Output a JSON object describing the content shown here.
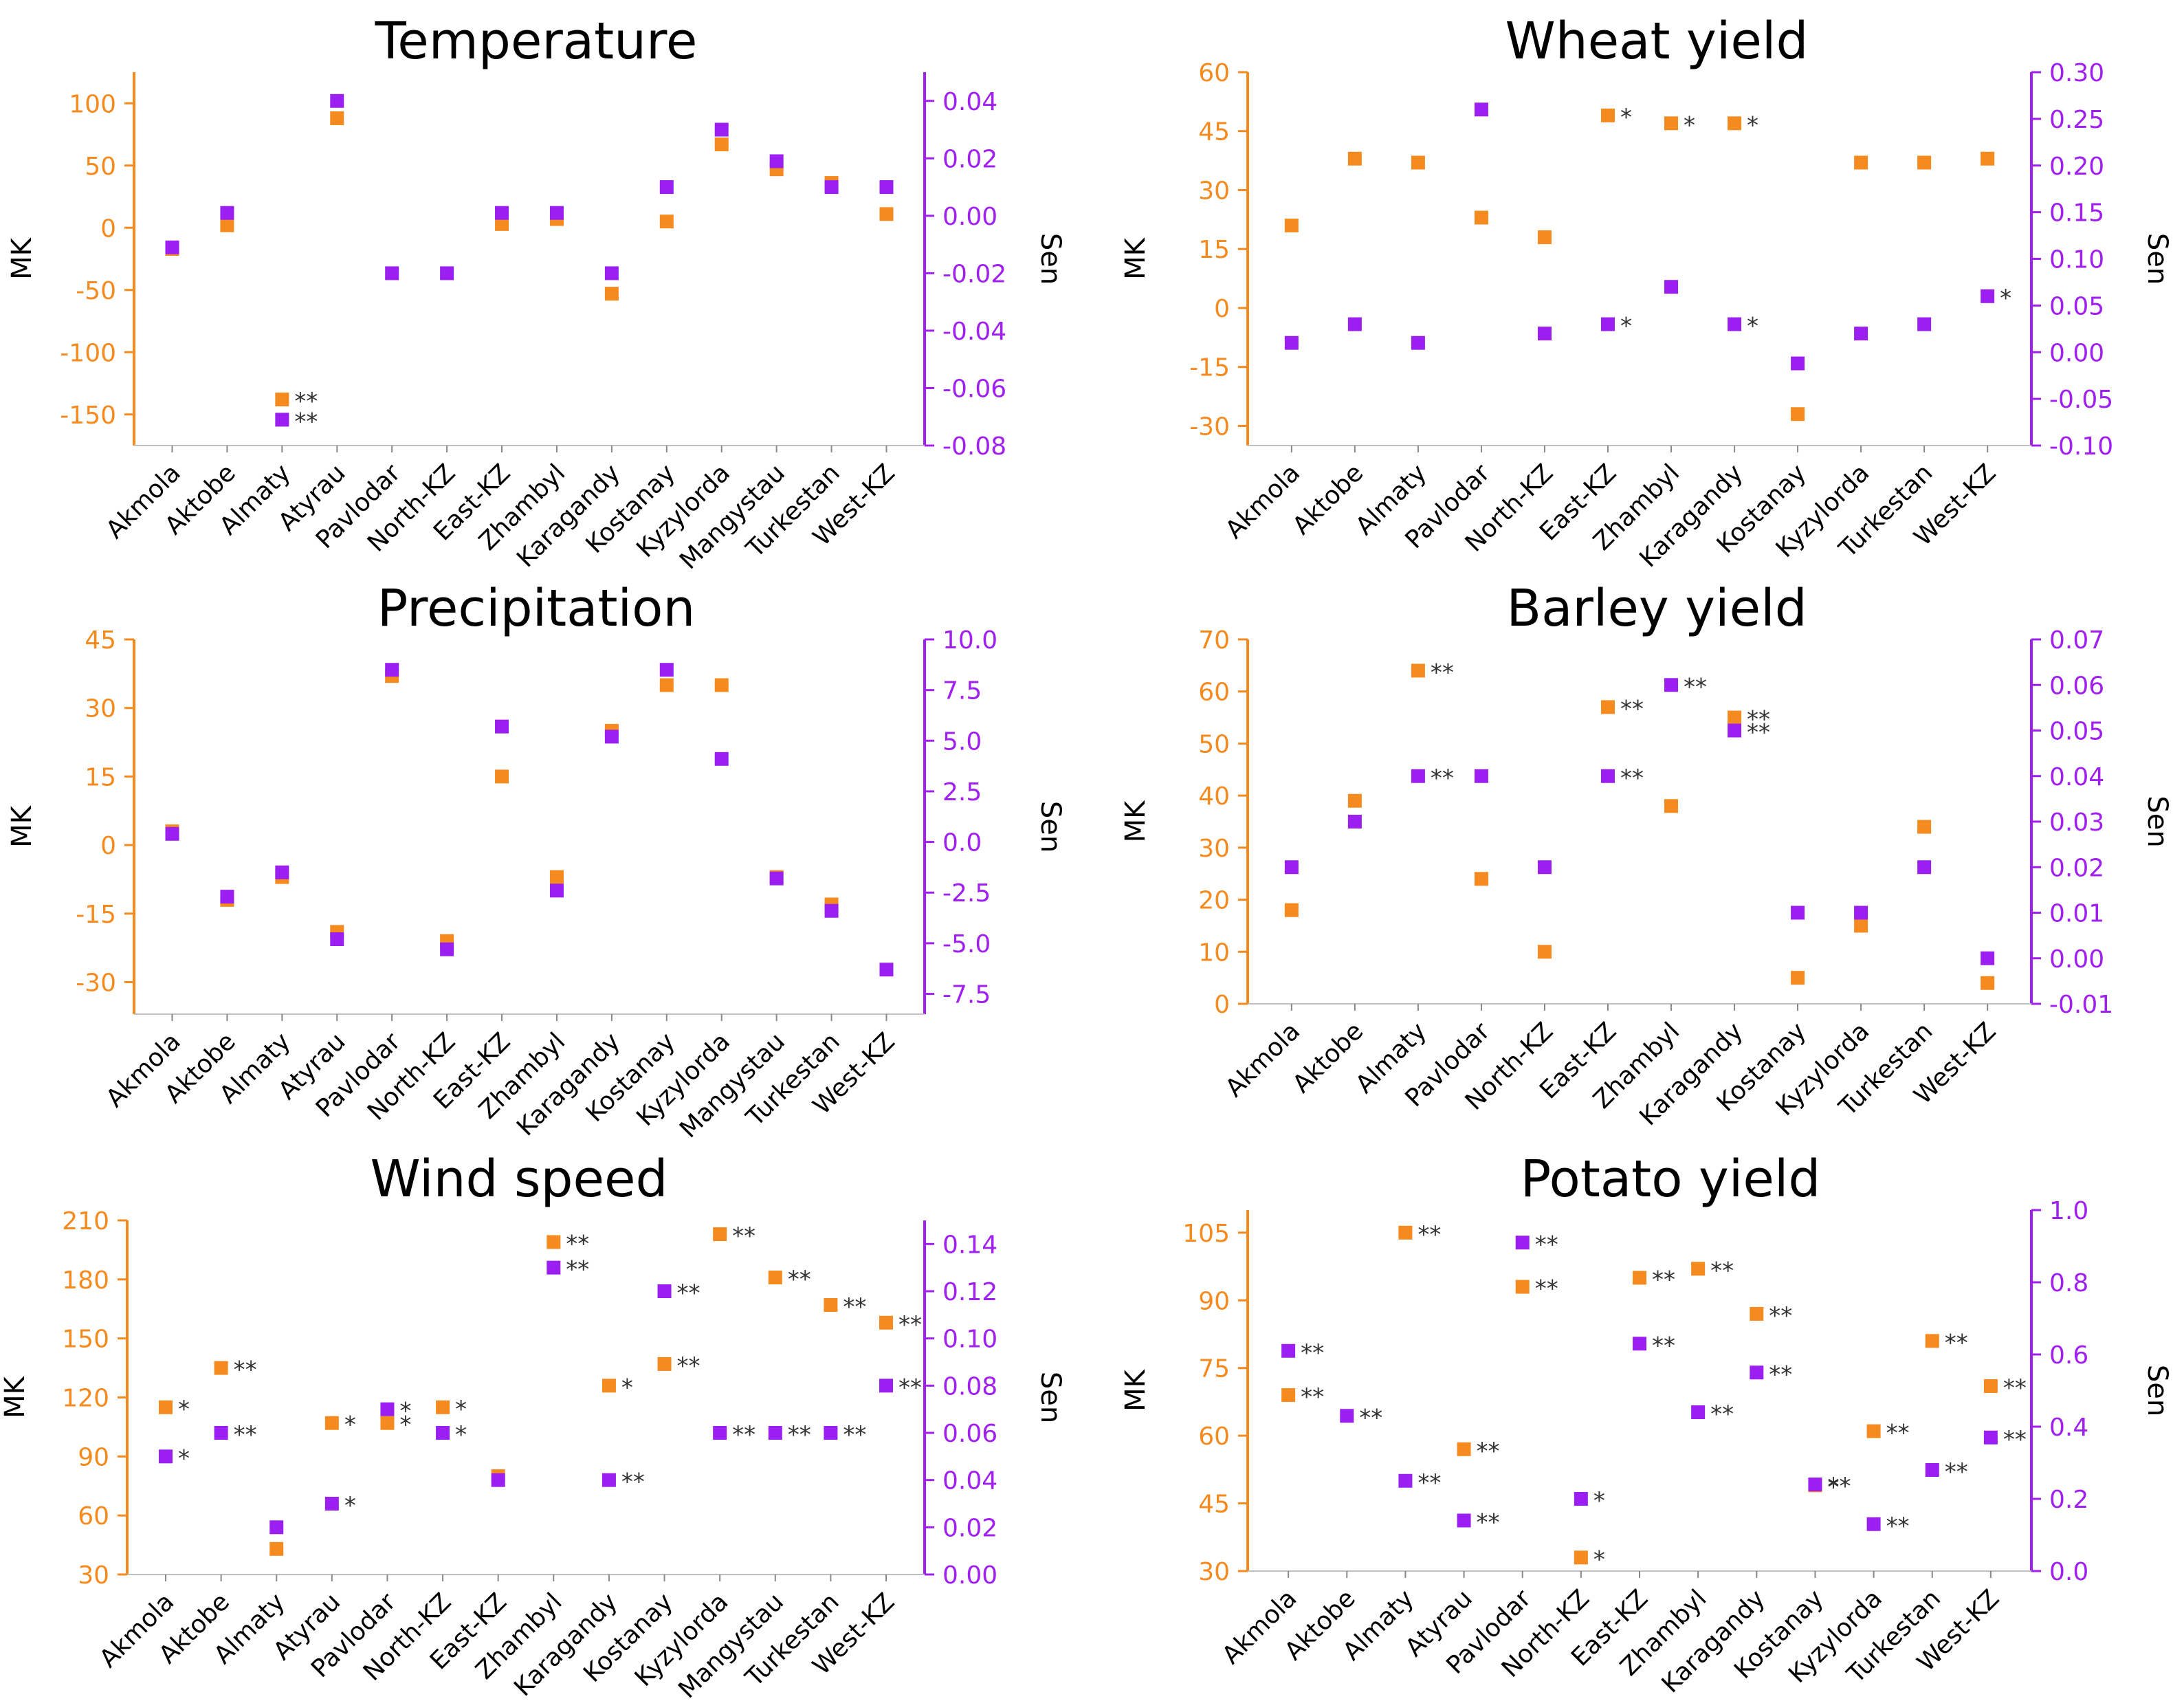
{
  "colors": {
    "mk": "#f58a1f",
    "sen": "#9b1ff0",
    "axis_left": "#f58a1f",
    "axis_right": "#a020f0",
    "text": "#000000",
    "star": "#333333"
  },
  "chart_data": [
    {
      "id": "temperature",
      "type": "scatter",
      "title": "Temperature",
      "ylabel": "MK",
      "y2label": "Sen",
      "ylim": [
        -175,
        125
      ],
      "y2lim": [
        -0.08,
        0.05
      ],
      "yticks": [
        100,
        50,
        0,
        -50,
        -100,
        -150
      ],
      "y2ticks": [
        0.04,
        0.02,
        0.0,
        -0.02,
        -0.04,
        -0.06,
        -0.08
      ],
      "ytick_labels": [
        "100",
        "50",
        "0",
        "-50",
        "-100",
        "-150"
      ],
      "y2tick_labels": [
        "0.04",
        "0.02",
        "0.00",
        "-0.02",
        "-0.04",
        "-0.06",
        "-0.08"
      ],
      "categories": [
        "Akmola",
        "Aktobe",
        "Almaty",
        "Atyrau",
        "Pavlodar",
        "North-KZ",
        "East-KZ",
        "Zhambyl",
        "Karagandy",
        "Kostanay",
        "Kyzylorda",
        "Mangystau",
        "Turkestan",
        "West-KZ"
      ],
      "series": [
        {
          "name": "MK",
          "axis": "left",
          "values": [
            -17,
            2,
            -138,
            88,
            null,
            null,
            3,
            7,
            -53,
            5,
            67,
            47,
            36,
            11
          ],
          "stars": [
            "",
            "",
            "**",
            "",
            "",
            "",
            "",
            "",
            "",
            "",
            "",
            "",
            "",
            ""
          ]
        },
        {
          "name": "Sen",
          "axis": "right",
          "values": [
            -0.011,
            0.001,
            -0.071,
            0.04,
            -0.02,
            -0.02,
            0.001,
            0.001,
            -0.02,
            0.01,
            0.03,
            0.019,
            0.01,
            0.01
          ],
          "stars": [
            "",
            "",
            "**",
            "",
            "",
            "",
            "",
            "",
            "",
            "",
            "",
            "",
            "",
            ""
          ]
        }
      ]
    },
    {
      "id": "wheat",
      "type": "scatter",
      "title": "Wheat yield",
      "ylabel": "MK",
      "y2label": "Sen",
      "ylim": [
        -35,
        60
      ],
      "y2lim": [
        -0.1,
        0.3
      ],
      "yticks": [
        60,
        45,
        30,
        15,
        0,
        -15,
        -30
      ],
      "y2ticks": [
        0.3,
        0.25,
        0.2,
        0.15,
        0.1,
        0.05,
        0.0,
        -0.05,
        -0.1
      ],
      "ytick_labels": [
        "60",
        "45",
        "30",
        "15",
        "0",
        "-15",
        "-30"
      ],
      "y2tick_labels": [
        "0.30",
        "0.25",
        "0.20",
        "0.15",
        "0.10",
        "0.05",
        "0.00",
        "-0.05",
        "-0.10"
      ],
      "categories": [
        "Akmola",
        "Aktobe",
        "Almaty",
        "Pavlodar",
        "North-KZ",
        "East-KZ",
        "Zhambyl",
        "Karagandy",
        "Kostanay",
        "Kyzylorda",
        "Turkestan",
        "West-KZ"
      ],
      "series": [
        {
          "name": "MK",
          "axis": "left",
          "values": [
            21,
            38,
            37,
            23,
            18,
            49,
            47,
            47,
            -27,
            37,
            37,
            38
          ],
          "stars": [
            "",
            "",
            "",
            "",
            "",
            "*",
            "*",
            "*",
            "",
            "",
            "",
            ""
          ]
        },
        {
          "name": "Sen",
          "axis": "right",
          "values": [
            0.01,
            0.03,
            0.01,
            0.26,
            0.02,
            0.03,
            0.07,
            0.03,
            -0.012,
            0.02,
            0.03,
            0.06
          ],
          "stars": [
            "",
            "",
            "",
            "",
            "",
            "*",
            "",
            "*",
            "",
            "",
            "",
            "*"
          ]
        }
      ]
    },
    {
      "id": "precipitation",
      "type": "scatter",
      "title": "Precipitation",
      "ylabel": "MK",
      "y2label": "Sen",
      "ylim": [
        -37,
        45
      ],
      "y2lim": [
        -8.5,
        10
      ],
      "yticks": [
        45,
        30,
        15,
        0,
        -15,
        -30
      ],
      "y2ticks": [
        10.0,
        7.5,
        5.0,
        2.5,
        0.0,
        -2.5,
        -5.0,
        -7.5
      ],
      "ytick_labels": [
        "45",
        "30",
        "15",
        "0",
        "-15",
        "-30"
      ],
      "y2tick_labels": [
        "10.0",
        "7.5",
        "5.0",
        "2.5",
        "0.0",
        "-2.5",
        "-5.0",
        "-7.5"
      ],
      "categories": [
        "Akmola",
        "Aktobe",
        "Almaty",
        "Atyrau",
        "Pavlodar",
        "North-KZ",
        "East-KZ",
        "Zhambyl",
        "Karagandy",
        "Kostanay",
        "Kyzylorda",
        "Mangystau",
        "Turkestan",
        "West-KZ"
      ],
      "series": [
        {
          "name": "MK",
          "axis": "left",
          "values": [
            3,
            -12,
            -7,
            -19,
            37,
            -21,
            15,
            -7,
            25,
            35,
            35,
            -7,
            -13,
            null
          ],
          "stars": [
            "",
            "",
            "",
            "",
            "",
            "",
            "",
            "",
            "",
            "",
            "",
            "",
            "",
            ""
          ]
        },
        {
          "name": "Sen",
          "axis": "right",
          "values": [
            0.4,
            -2.7,
            -1.5,
            -4.8,
            8.5,
            -5.3,
            5.7,
            -2.4,
            5.2,
            8.5,
            4.1,
            -1.8,
            -3.4,
            -6.3
          ],
          "stars": [
            "",
            "",
            "",
            "",
            "",
            "",
            "",
            "",
            "",
            "",
            "",
            "",
            "",
            ""
          ]
        }
      ]
    },
    {
      "id": "barley",
      "type": "scatter",
      "title": "Barley yield",
      "ylabel": "MK",
      "y2label": "Sen",
      "ylim": [
        0,
        70
      ],
      "y2lim": [
        -0.01,
        0.07
      ],
      "yticks": [
        70,
        60,
        50,
        40,
        30,
        20,
        10,
        0
      ],
      "y2ticks": [
        0.07,
        0.06,
        0.05,
        0.04,
        0.03,
        0.02,
        0.01,
        0.0,
        -0.01
      ],
      "ytick_labels": [
        "70",
        "60",
        "50",
        "40",
        "30",
        "20",
        "10",
        "0"
      ],
      "y2tick_labels": [
        "0.07",
        "0.06",
        "0.05",
        "0.04",
        "0.03",
        "0.02",
        "0.01",
        "0.00",
        "-0.01"
      ],
      "categories": [
        "Akmola",
        "Aktobe",
        "Almaty",
        "Pavlodar",
        "North-KZ",
        "East-KZ",
        "Zhambyl",
        "Karagandy",
        "Kostanay",
        "Kyzylorda",
        "Turkestan",
        "West-KZ"
      ],
      "series": [
        {
          "name": "MK",
          "axis": "left",
          "values": [
            18,
            39,
            64,
            24,
            10,
            57,
            38,
            55,
            5,
            15,
            34,
            4
          ],
          "stars": [
            "",
            "",
            "**",
            "",
            "",
            "**",
            "",
            "**",
            "",
            "",
            "",
            ""
          ]
        },
        {
          "name": "Sen",
          "axis": "right",
          "values": [
            0.02,
            0.03,
            0.04,
            0.04,
            0.02,
            0.04,
            0.06,
            0.05,
            0.01,
            0.01,
            0.02,
            0.0
          ],
          "stars": [
            "",
            "",
            "**",
            "",
            "",
            "**",
            "**",
            "**",
            "",
            "",
            "",
            ""
          ]
        }
      ]
    },
    {
      "id": "wind",
      "type": "scatter",
      "title": "Wind speed",
      "ylabel": "MK",
      "y2label": "Sen",
      "ylim": [
        30,
        210
      ],
      "y2lim": [
        0,
        0.15
      ],
      "yticks": [
        210,
        180,
        150,
        120,
        90,
        60,
        30
      ],
      "y2ticks": [
        0.14,
        0.12,
        0.1,
        0.08,
        0.06,
        0.04,
        0.02,
        0.0
      ],
      "ytick_labels": [
        "210",
        "180",
        "150",
        "120",
        "90",
        "60",
        "30"
      ],
      "y2tick_labels": [
        "0.14",
        "0.12",
        "0.10",
        "0.08",
        "0.06",
        "0.04",
        "0.02",
        "0.00"
      ],
      "categories": [
        "Akmola",
        "Aktobe",
        "Almaty",
        "Atyrau",
        "Pavlodar",
        "North-KZ",
        "East-KZ",
        "Zhambyl",
        "Karagandy",
        "Kostanay",
        "Kyzylorda",
        "Mangystau",
        "Turkestan",
        "West-KZ"
      ],
      "series": [
        {
          "name": "MK",
          "axis": "left",
          "values": [
            115,
            135,
            43,
            107,
            107,
            115,
            80,
            199,
            126,
            137,
            203,
            181,
            167,
            158
          ],
          "stars": [
            "*",
            "**",
            "",
            "*",
            "*",
            "*",
            "",
            "**",
            "*",
            "**",
            "**",
            "**",
            "**",
            "**"
          ]
        },
        {
          "name": "Sen",
          "axis": "right",
          "values": [
            0.05,
            0.06,
            0.02,
            0.03,
            0.07,
            0.06,
            0.04,
            0.13,
            0.04,
            0.12,
            0.06,
            0.06,
            0.06,
            0.08
          ],
          "stars": [
            "*",
            "**",
            "",
            "*",
            "*",
            "*",
            "",
            "**",
            "**",
            "**",
            "**",
            "**",
            "**",
            "**"
          ]
        }
      ]
    },
    {
      "id": "potato",
      "type": "scatter",
      "title": "Potato yield",
      "ylabel": "MK",
      "y2label": "Sen",
      "ylim": [
        30,
        110
      ],
      "y2lim": [
        0,
        1.0
      ],
      "yticks": [
        105,
        90,
        75,
        60,
        45,
        30
      ],
      "y2ticks": [
        1.0,
        0.8,
        0.6,
        0.4,
        0.2,
        0.0
      ],
      "ytick_labels": [
        "105",
        "90",
        "75",
        "60",
        "45",
        "30"
      ],
      "y2tick_labels": [
        "1.0",
        "0.8",
        "0.6",
        "0.4",
        "0.2",
        "0.0"
      ],
      "categories": [
        "Akmola",
        "Aktobe",
        "Almaty",
        "Atyrau",
        "Pavlodar",
        "North-KZ",
        "East-KZ",
        "Zhambyl",
        "Karagandy",
        "Kostanay",
        "Kyzylorda",
        "Turkestan",
        "West-KZ"
      ],
      "series": [
        {
          "name": "MK",
          "axis": "left",
          "values": [
            69,
            null,
            105,
            57,
            93,
            33,
            95,
            97,
            87,
            49,
            61,
            81,
            71
          ],
          "stars": [
            "**",
            "",
            "**",
            "**",
            "**",
            "*",
            "**",
            "**",
            "**",
            "*",
            "**",
            "**",
            "**"
          ]
        },
        {
          "name": "Sen",
          "axis": "right",
          "values": [
            0.61,
            0.43,
            0.25,
            0.14,
            0.91,
            0.2,
            0.63,
            0.44,
            0.55,
            0.24,
            0.13,
            0.28,
            0.37
          ],
          "stars": [
            "**",
            "**",
            "**",
            "**",
            "**",
            "*",
            "**",
            "**",
            "**",
            "**",
            "**",
            "**",
            "**"
          ]
        }
      ]
    }
  ]
}
